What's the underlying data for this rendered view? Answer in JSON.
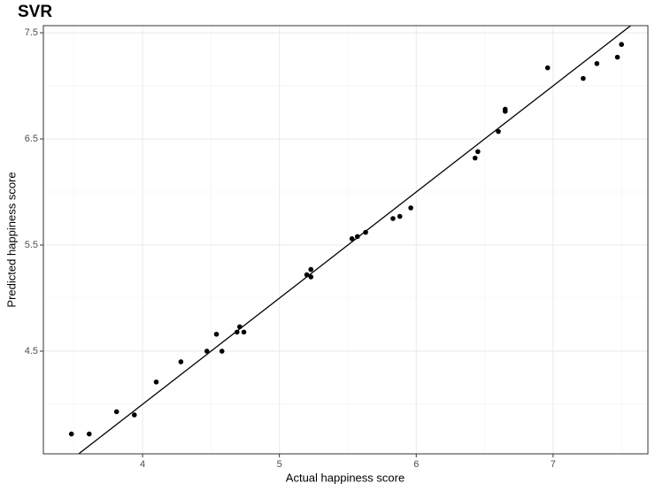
{
  "chart_data": {
    "type": "scatter",
    "title": "SVR",
    "xlabel": "Actual happiness score",
    "ylabel": "Predicted happiness score",
    "xlim": [
      3.275,
      7.693
    ],
    "ylim": [
      3.533,
      7.567
    ],
    "xticks": [
      4,
      5,
      6,
      7
    ],
    "yticks": [
      4.5,
      5.5,
      6.5,
      7.5
    ],
    "xminorticks": [
      3.5,
      4.5,
      5.5,
      6.5,
      7.5
    ],
    "yminorticks": [
      4,
      5,
      6,
      7
    ],
    "grid": true,
    "color": "#000000",
    "abline": {
      "slope": 1,
      "intercept": 0
    },
    "x": [
      3.48,
      3.61,
      3.81,
      3.94,
      4.1,
      4.28,
      4.47,
      4.54,
      4.58,
      4.69,
      4.71,
      4.74,
      5.2,
      5.23,
      5.23,
      5.53,
      5.57,
      5.63,
      5.83,
      5.88,
      5.96,
      6.43,
      6.45,
      6.6,
      6.65,
      6.65,
      6.96,
      7.22,
      7.32,
      7.47,
      7.5
    ],
    "y": [
      3.72,
      3.72,
      3.93,
      3.9,
      4.21,
      4.4,
      4.5,
      4.66,
      4.5,
      4.68,
      4.73,
      4.68,
      5.22,
      5.27,
      5.2,
      5.56,
      5.58,
      5.62,
      5.75,
      5.77,
      5.85,
      6.32,
      6.38,
      6.57,
      6.76,
      6.78,
      7.17,
      7.07,
      7.21,
      7.27,
      7.39
    ]
  }
}
